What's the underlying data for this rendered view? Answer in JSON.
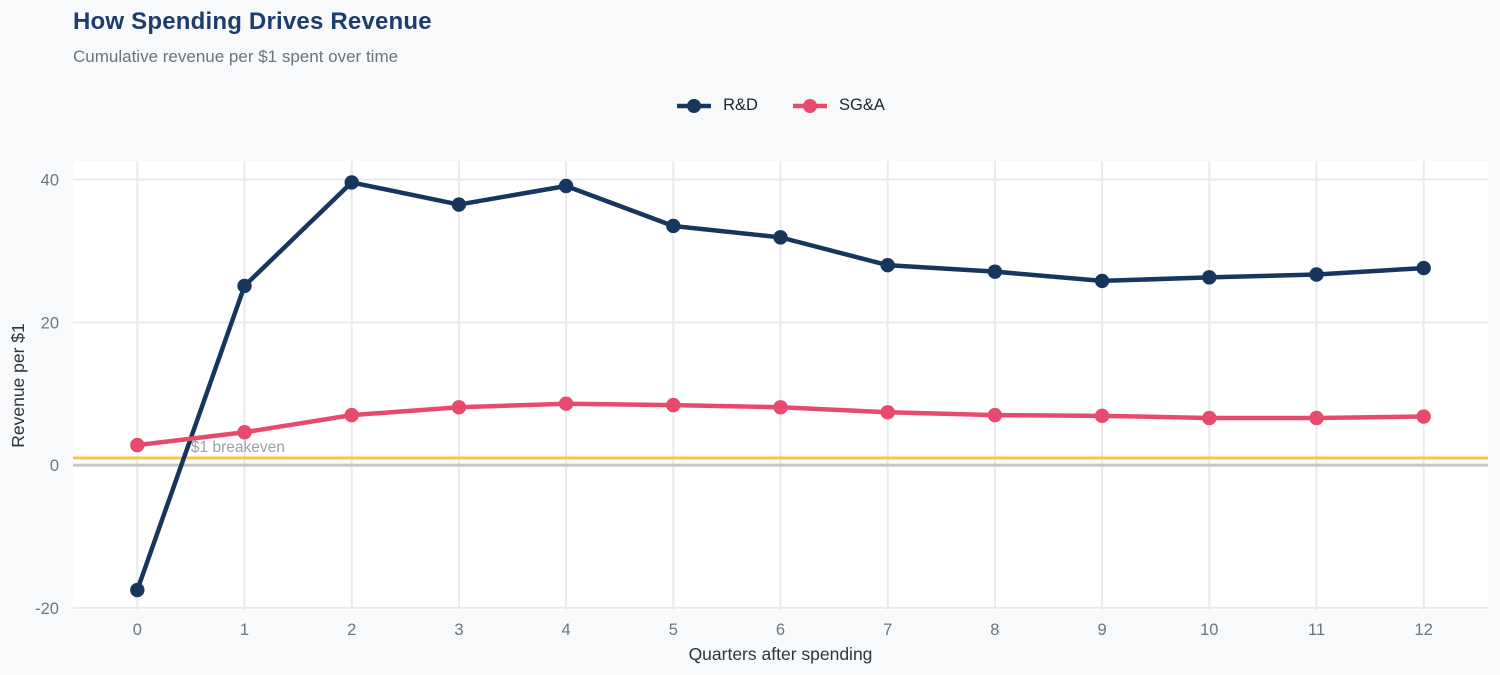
{
  "page": {
    "title": "How Spending Drives Revenue",
    "subtitle": "Cumulative revenue per $1 spent over time"
  },
  "legend": {
    "items": [
      {
        "label": "R&D",
        "color": "#17365d"
      },
      {
        "label": "SG&A",
        "color": "#e84a6e"
      }
    ]
  },
  "chart_data": {
    "type": "line",
    "title": "How Spending Drives Revenue",
    "subtitle": "Cumulative revenue per $1 spent over time",
    "xlabel": "Quarters after spending",
    "ylabel": "Revenue per $1",
    "x": [
      0,
      1,
      2,
      3,
      4,
      5,
      6,
      7,
      8,
      9,
      10,
      11,
      12
    ],
    "series": [
      {
        "name": "R&D",
        "color": "#17365d",
        "values": [
          -17.5,
          25.1,
          39.6,
          36.5,
          39.1,
          33.5,
          31.9,
          28.0,
          27.1,
          25.8,
          26.3,
          26.7,
          27.6
        ]
      },
      {
        "name": "SG&A",
        "color": "#e84a6e",
        "values": [
          2.8,
          4.6,
          7.0,
          8.1,
          8.6,
          8.4,
          8.1,
          7.4,
          7.0,
          6.9,
          6.6,
          6.6,
          6.8
        ]
      }
    ],
    "xticks": [
      0,
      1,
      2,
      3,
      4,
      5,
      6,
      7,
      8,
      9,
      10,
      11,
      12
    ],
    "yticks": [
      -20,
      0,
      20,
      40
    ],
    "xlim": [
      -0.6,
      12.6
    ],
    "ylim": [
      -20.3,
      42.6
    ],
    "grid": true,
    "legend_position": "top-center",
    "plot_background": "#ffffff",
    "page_background": "#f8f9fa",
    "gridline_color": "#e9eaec",
    "tick_label_color": "#6e757c",
    "axis_title_color": "#30353a",
    "annotation": {
      "text": "$1 breakeven",
      "x": 0.5,
      "y": 1,
      "color": "#9aa0a6"
    },
    "reference_lines": [
      {
        "y": 0,
        "color": "#c4c7ca",
        "name": "zero-line"
      },
      {
        "y": 1,
        "color": "#f6c54a",
        "name": "breakeven-line"
      }
    ]
  }
}
